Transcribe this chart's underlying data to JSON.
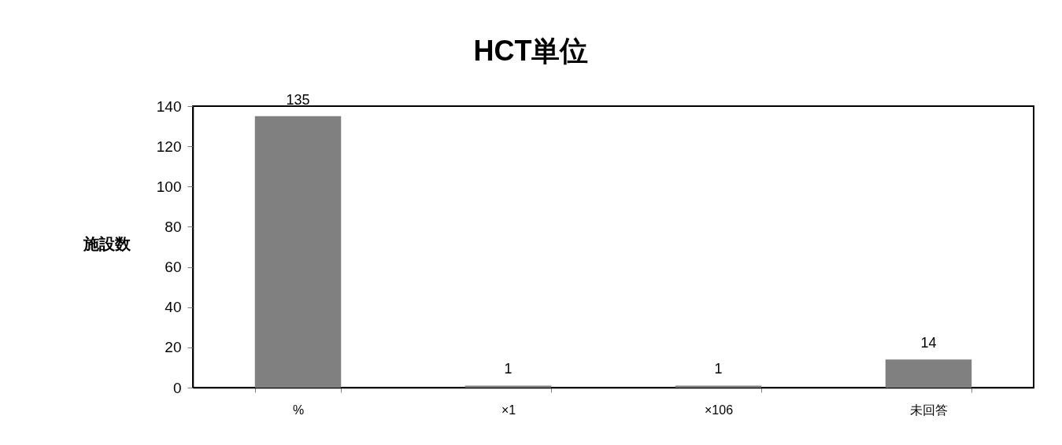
{
  "chart_data": {
    "type": "bar",
    "title": "HCT単位",
    "ylabel": "施設数",
    "categories": [
      "%",
      "×1",
      "×106",
      "未回答"
    ],
    "values": [
      135,
      1,
      1,
      14
    ],
    "color": "#808080",
    "ylim": [
      0,
      140
    ],
    "yticks": [
      0,
      20,
      40,
      60,
      80,
      100,
      120,
      140
    ],
    "data_labels": true,
    "grid": false
  }
}
